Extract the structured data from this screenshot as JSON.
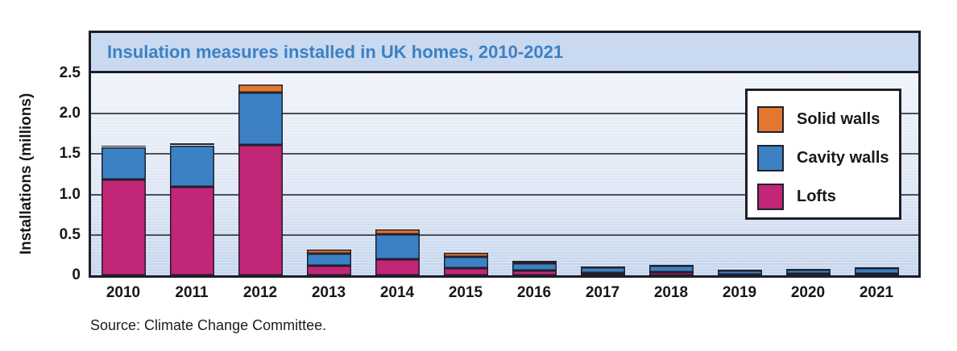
{
  "header": {
    "title": "Insulation measures installed in UK homes, 2010-2021"
  },
  "source_note": "Source: Climate Change Committee.",
  "colors": {
    "header_band": "#c9d9ef",
    "title_text": "#3d80c4",
    "frame_border": "#1e1e28",
    "gridline": "#4e5058",
    "plot_background_top": "#eff3fa",
    "plot_background_bottom": "#c3d4ec",
    "solid_walls": "#e4762f",
    "cavity_walls": "#3c81c4",
    "lofts": "#c12677"
  },
  "chart_data": {
    "type": "bar",
    "stacked": true,
    "title": "Insulation measures installed in UK homes, 2010-2021",
    "xlabel": "",
    "ylabel": "Installations (millions)",
    "ylim": [
      0,
      2.5
    ],
    "yticks": [
      0,
      0.5,
      1.0,
      1.5,
      2.0,
      2.5
    ],
    "ytick_labels": [
      "0",
      "0.5",
      "1.0",
      "1.5",
      "2.0",
      "2.5"
    ],
    "grid": true,
    "categories": [
      "2010",
      "2011",
      "2012",
      "2013",
      "2014",
      "2015",
      "2016",
      "2017",
      "2018",
      "2019",
      "2020",
      "2021"
    ],
    "series": [
      {
        "name": "Lofts",
        "color": "#c12677",
        "values": [
          1.19,
          1.1,
          1.61,
          0.12,
          0.2,
          0.09,
          0.06,
          0.03,
          0.04,
          0.01,
          0.02,
          0.02
        ]
      },
      {
        "name": "Cavity walls",
        "color": "#3c81c4",
        "values": [
          0.4,
          0.51,
          0.65,
          0.15,
          0.31,
          0.14,
          0.09,
          0.07,
          0.08,
          0.05,
          0.05,
          0.07
        ]
      },
      {
        "name": "Solid walls",
        "color": "#e4762f",
        "values": [
          0.01,
          0.02,
          0.1,
          0.05,
          0.06,
          0.05,
          0.03,
          0.01,
          0.01,
          0.01,
          0.01,
          0.01
        ]
      }
    ],
    "totals": [
      1.6,
      1.63,
      2.36,
      0.32,
      0.57,
      0.28,
      0.18,
      0.11,
      0.13,
      0.07,
      0.08,
      0.1
    ],
    "legend": {
      "position": "upper right",
      "entries": [
        "Solid walls",
        "Cavity walls",
        "Lofts"
      ]
    }
  }
}
